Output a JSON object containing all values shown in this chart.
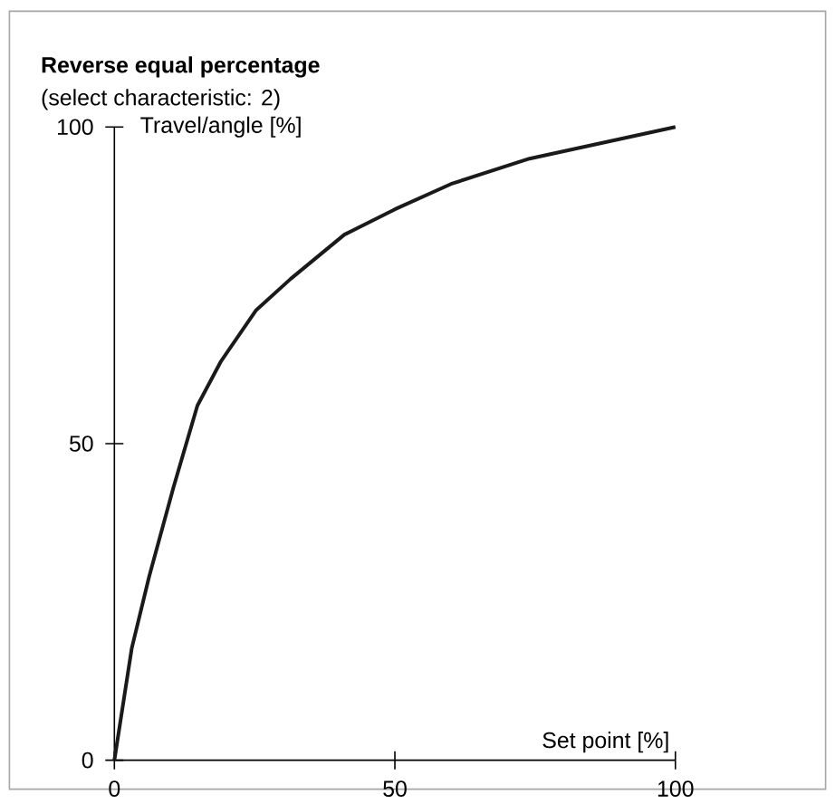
{
  "chart_data": {
    "type": "line",
    "title": "Reverse equal percentage",
    "subtitle": "(select characteristic: 2)",
    "xlabel": "Set point [%]",
    "ylabel": "Travel/angle [%]",
    "x": [
      0,
      3.1,
      6.2,
      10.5,
      14.8,
      19,
      25.2,
      31.4,
      41,
      50,
      60,
      74,
      100
    ],
    "series": [
      {
        "color": "#1a1a1a",
        "values": [
          0,
          17.7,
          29,
          43,
          56,
          63,
          71,
          76,
          83,
          87,
          91,
          95,
          100
        ]
      }
    ],
    "xlim": [
      0,
      100
    ],
    "ylim": [
      0,
      100
    ],
    "xticks": [
      0,
      50,
      100
    ],
    "yticks": [
      0,
      50,
      100
    ],
    "grid": false,
    "legend": false,
    "marker": "none",
    "line_style": "solid"
  }
}
